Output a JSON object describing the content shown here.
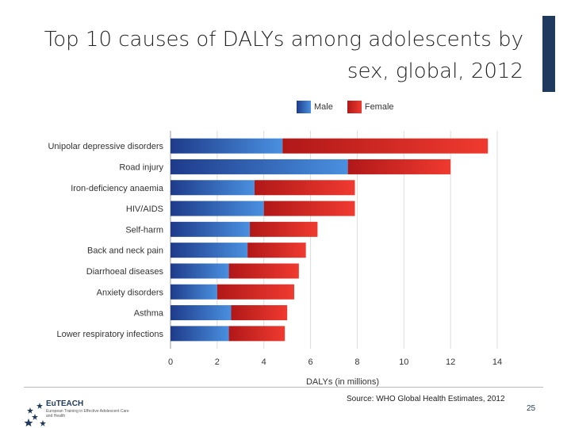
{
  "slide": {
    "title": "Top 10 causes of DALYs among adolescents by sex, global, 2012",
    "source": "Source: WHO Global Health Estimates, 2012",
    "page_number": "25",
    "logo_name": "EuTEACH",
    "logo_subtitle": "European Training in Effective Adolescent Care and Health"
  },
  "colors": {
    "male_start": "#1e3b8a",
    "male_end": "#4a90e0",
    "female_start": "#b01818",
    "female_end": "#f03a30",
    "accent": "#1f3a5c"
  },
  "chart_data": {
    "type": "bar",
    "orientation": "horizontal",
    "stacked": true,
    "title": "Top 10 causes of DALYs among adolescents by sex, global, 2012",
    "xlabel": "DALYs (in millions)",
    "ylabel": "",
    "xlim": [
      0,
      14
    ],
    "xticks": [
      0,
      2,
      4,
      6,
      8,
      10,
      12,
      14
    ],
    "grid": true,
    "legend_position": "top",
    "categories": [
      "Unipolar depressive disorders",
      "Road injury",
      "Iron-deficiency anaemia",
      "HIV/AIDS",
      "Self-harm",
      "Back and neck pain",
      "Diarrhoeal diseases",
      "Anxiety disorders",
      "Asthma",
      "Lower respiratory infections"
    ],
    "series": [
      {
        "name": "Male",
        "values": [
          4.8,
          7.6,
          3.6,
          4.0,
          3.4,
          3.3,
          2.5,
          2.0,
          2.6,
          2.5
        ]
      },
      {
        "name": "Female",
        "values": [
          8.8,
          4.4,
          4.3,
          3.9,
          2.9,
          2.5,
          3.0,
          3.3,
          2.4,
          2.4
        ]
      }
    ]
  }
}
